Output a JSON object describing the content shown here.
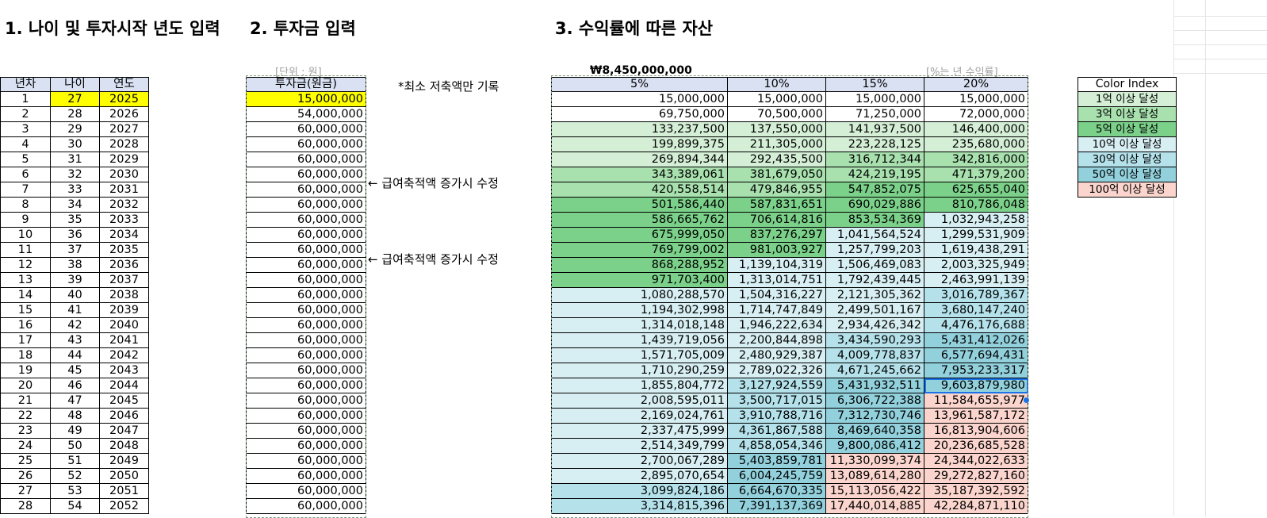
{
  "headings": {
    "section1": "1. 나이 및 투자시작 년도 입력",
    "section2": "2. 투자금 입력",
    "section3": "3. 수익률에 따른 자산"
  },
  "notes": {
    "unit": "[단위 : 원]",
    "total": "₩8,450,000,000",
    "rate_unit": "[%는 년 수익률]",
    "minimum_note": "*최소 저축액만 기록",
    "salary_note": "← 급여축적액 증가시 수정"
  },
  "table1": {
    "headers": [
      "년차",
      "나이",
      "연도"
    ],
    "rows": [
      [
        "1",
        "27",
        "2025"
      ],
      [
        "2",
        "28",
        "2026"
      ],
      [
        "3",
        "29",
        "2027"
      ],
      [
        "4",
        "30",
        "2028"
      ],
      [
        "5",
        "31",
        "2029"
      ],
      [
        "6",
        "32",
        "2030"
      ],
      [
        "7",
        "33",
        "2031"
      ],
      [
        "8",
        "34",
        "2032"
      ],
      [
        "9",
        "35",
        "2033"
      ],
      [
        "10",
        "36",
        "2034"
      ],
      [
        "11",
        "37",
        "2035"
      ],
      [
        "12",
        "38",
        "2036"
      ],
      [
        "13",
        "39",
        "2037"
      ],
      [
        "14",
        "40",
        "2038"
      ],
      [
        "15",
        "41",
        "2039"
      ],
      [
        "16",
        "42",
        "2040"
      ],
      [
        "17",
        "43",
        "2041"
      ],
      [
        "18",
        "44",
        "2042"
      ],
      [
        "19",
        "45",
        "2043"
      ],
      [
        "20",
        "46",
        "2044"
      ],
      [
        "21",
        "47",
        "2045"
      ],
      [
        "22",
        "48",
        "2046"
      ],
      [
        "23",
        "49",
        "2047"
      ],
      [
        "24",
        "50",
        "2048"
      ],
      [
        "25",
        "51",
        "2049"
      ],
      [
        "26",
        "52",
        "2050"
      ],
      [
        "27",
        "53",
        "2051"
      ],
      [
        "28",
        "54",
        "2052"
      ]
    ]
  },
  "table2": {
    "header": "투자금(원금)",
    "values": [
      "15,000,000",
      "54,000,000",
      "60,000,000",
      "60,000,000",
      "60,000,000",
      "60,000,000",
      "60,000,000",
      "60,000,000",
      "60,000,000",
      "60,000,000",
      "60,000,000",
      "60,000,000",
      "60,000,000",
      "60,000,000",
      "60,000,000",
      "60,000,000",
      "60,000,000",
      "60,000,000",
      "60,000,000",
      "60,000,000",
      "60,000,000",
      "60,000,000",
      "60,000,000",
      "60,000,000",
      "60,000,000",
      "60,000,000",
      "60,000,000",
      "60,000,000"
    ]
  },
  "table3": {
    "headers": [
      "5%",
      "10%",
      "15%",
      "20%"
    ],
    "rows": [
      [
        "15,000,000",
        "15,000,000",
        "15,000,000",
        "15,000,000"
      ],
      [
        "69,750,000",
        "70,500,000",
        "71,250,000",
        "72,000,000"
      ],
      [
        "133,237,500",
        "137,550,000",
        "141,937,500",
        "146,400,000"
      ],
      [
        "199,899,375",
        "211,305,000",
        "223,228,125",
        "235,680,000"
      ],
      [
        "269,894,344",
        "292,435,500",
        "316,712,344",
        "342,816,000"
      ],
      [
        "343,389,061",
        "381,679,050",
        "424,219,195",
        "471,379,200"
      ],
      [
        "420,558,514",
        "479,846,955",
        "547,852,075",
        "625,655,040"
      ],
      [
        "501,586,440",
        "587,831,651",
        "690,029,886",
        "810,786,048"
      ],
      [
        "586,665,762",
        "706,614,816",
        "853,534,369",
        "1,032,943,258"
      ],
      [
        "675,999,050",
        "837,276,297",
        "1,041,564,524",
        "1,299,531,909"
      ],
      [
        "769,799,002",
        "981,003,927",
        "1,257,799,203",
        "1,619,438,291"
      ],
      [
        "868,288,952",
        "1,139,104,319",
        "1,506,469,083",
        "2,003,325,949"
      ],
      [
        "971,703,400",
        "1,313,014,751",
        "1,792,439,445",
        "2,463,991,139"
      ],
      [
        "1,080,288,570",
        "1,504,316,227",
        "2,121,305,362",
        "3,016,789,367"
      ],
      [
        "1,194,302,998",
        "1,714,747,849",
        "2,499,501,167",
        "3,680,147,240"
      ],
      [
        "1,314,018,148",
        "1,946,222,634",
        "2,934,426,342",
        "4,476,176,688"
      ],
      [
        "1,439,719,056",
        "2,200,844,898",
        "3,434,590,293",
        "5,431,412,026"
      ],
      [
        "1,571,705,009",
        "2,480,929,387",
        "4,009,778,837",
        "6,577,694,431"
      ],
      [
        "1,710,290,259",
        "2,789,022,326",
        "4,671,245,662",
        "7,953,233,317"
      ],
      [
        "1,855,804,772",
        "3,127,924,559",
        "5,431,932,511",
        "9,603,879,980"
      ],
      [
        "2,008,595,011",
        "3,500,717,015",
        "6,306,722,388",
        "11,584,655,977"
      ],
      [
        "2,169,024,761",
        "3,910,788,716",
        "7,312,730,746",
        "13,961,587,172"
      ],
      [
        "2,337,475,999",
        "4,361,867,588",
        "8,469,640,358",
        "16,813,904,606"
      ],
      [
        "2,514,349,799",
        "4,858,054,346",
        "9,800,086,412",
        "20,236,685,528"
      ],
      [
        "2,700,067,289",
        "5,403,859,781",
        "11,330,099,374",
        "24,344,022,633"
      ],
      [
        "2,895,070,654",
        "6,004,245,759",
        "13,089,614,280",
        "29,272,827,160"
      ],
      [
        "3,099,824,186",
        "6,664,670,335",
        "15,113,056,422",
        "35,187,392,592"
      ],
      [
        "3,314,815,396",
        "7,391,137,369",
        "17,440,014,885",
        "42,284,871,110"
      ]
    ]
  },
  "color_index": {
    "title": "Color Index",
    "items": [
      {
        "label": "1억 이상 달성",
        "color": "#d4efd6"
      },
      {
        "label": "3억 이상 달성",
        "color": "#a8e0ae"
      },
      {
        "label": "5억 이상 달성",
        "color": "#7cd18a"
      },
      {
        "label": "10억 이상 달성",
        "color": "#d7eef2"
      },
      {
        "label": "30억 이상 달성",
        "color": "#b4e1ea"
      },
      {
        "label": "50억 이상 달성",
        "color": "#92d0dc"
      },
      {
        "label": "100억 이상 달성",
        "color": "#fbd5cd"
      }
    ]
  },
  "highlight_color": "#ffff00",
  "header_fill_color": "#d9e1f2",
  "selected_cell": "9,603,879,980"
}
